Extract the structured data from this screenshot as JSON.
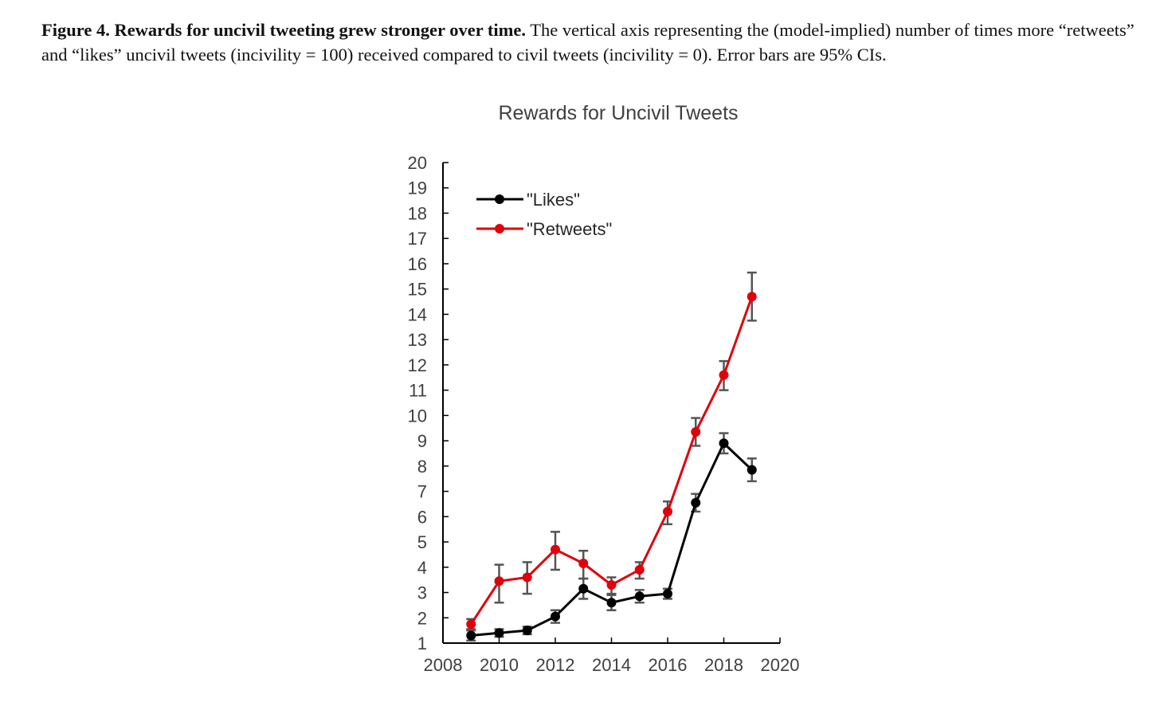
{
  "caption": {
    "lead": "Figure 4. Rewards for uncivil tweeting grew stronger over time.",
    "body": " The vertical axis representing the (model-implied) number of times more “retweets” and “likes” uncivil tweets (incivility = 100) received compared to civil tweets (incivility = 0). Error bars are 95% CIs."
  },
  "chart_data": {
    "type": "line",
    "title": "Rewards for Uncivil Tweets",
    "xlabel": "",
    "ylabel": "",
    "xlim": [
      2008,
      2020
    ],
    "ylim": [
      1,
      20
    ],
    "x_ticks": [
      2008,
      2010,
      2012,
      2014,
      2016,
      2018,
      2020
    ],
    "y_ticks": [
      1,
      2,
      3,
      4,
      5,
      6,
      7,
      8,
      9,
      10,
      11,
      12,
      13,
      14,
      15,
      16,
      17,
      18,
      19,
      20
    ],
    "grid": false,
    "legend_position": "top-left",
    "x": [
      2009,
      2010,
      2011,
      2012,
      2013,
      2014,
      2015,
      2016,
      2017,
      2018,
      2019
    ],
    "series": [
      {
        "name": "\"Likes\"",
        "color": "#000000",
        "values": [
          1.3,
          1.4,
          1.5,
          2.05,
          3.15,
          2.6,
          2.85,
          2.95,
          6.55,
          8.9,
          7.85
        ],
        "ci_low": [
          1.1,
          1.25,
          1.35,
          1.8,
          2.75,
          2.3,
          2.6,
          2.75,
          6.2,
          8.5,
          7.4
        ],
        "ci_high": [
          1.5,
          1.55,
          1.65,
          2.3,
          3.55,
          2.9,
          3.1,
          3.15,
          6.9,
          9.3,
          8.3
        ]
      },
      {
        "name": "\"Retweets\"",
        "color": "#e0000b",
        "values": [
          1.75,
          3.45,
          3.6,
          4.7,
          4.15,
          3.3,
          3.9,
          6.2,
          9.35,
          11.6,
          14.7
        ],
        "ci_low": [
          1.55,
          2.6,
          2.95,
          3.9,
          3.55,
          2.95,
          3.55,
          5.7,
          8.8,
          11.0,
          13.75
        ],
        "ci_high": [
          1.95,
          4.1,
          4.2,
          5.4,
          4.65,
          3.6,
          4.2,
          6.6,
          9.9,
          12.15,
          15.65
        ]
      }
    ]
  }
}
